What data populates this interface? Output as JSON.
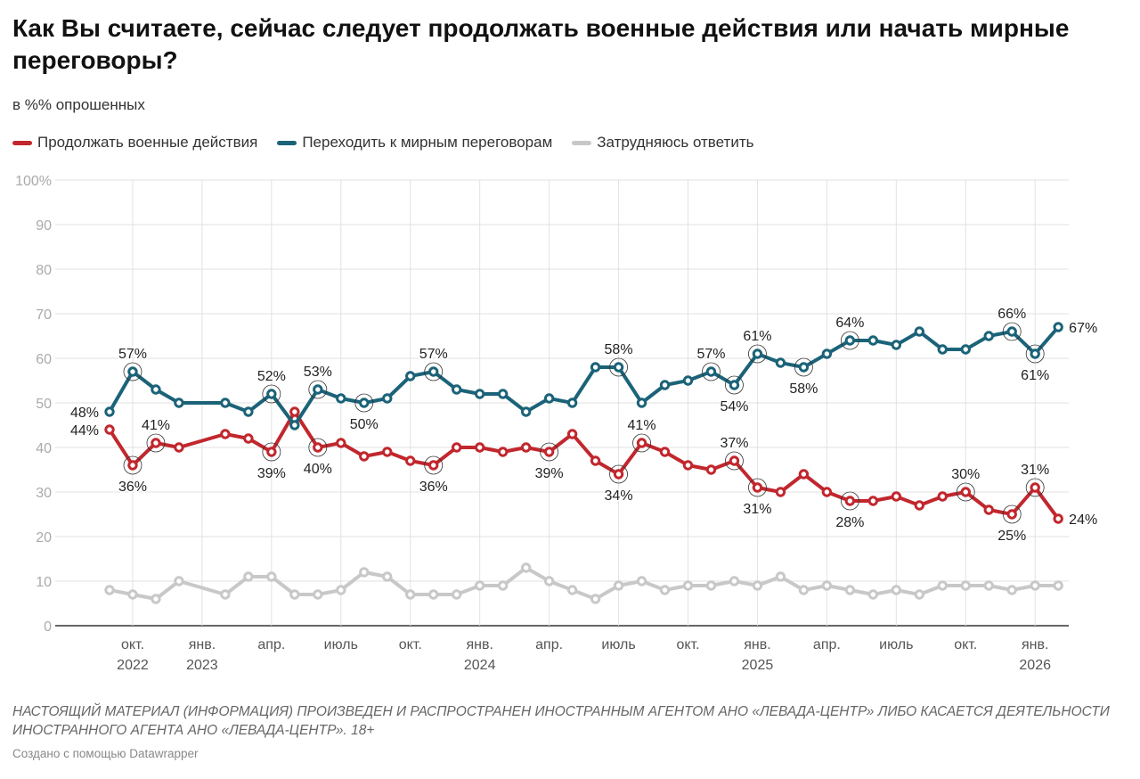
{
  "header": {
    "title": "Как Вы считаете, сейчас следует продолжать военные действия или начать мирные переговоры?",
    "subtitle": "в %% опрошенных"
  },
  "footer": {
    "note": "НАСТОЯЩИЙ МАТЕРИАЛ (ИНФОРМАЦИЯ) ПРОИЗВЕДЕН И РАСПРОСТРАНЕН ИНОСТРАННЫМ АГЕНТОМ АНО «ЛЕВАДА-ЦЕНТР» ЛИБО КАСАЕТСЯ ДЕЯТЕЛЬНОСТИ ИНОСТРАННОГО АГЕНТА АНО «ЛЕВАДА-ЦЕНТР». 18+",
    "credit": "Создано с помощью Datawrapper"
  },
  "chart_data": {
    "type": "line",
    "title": "Как Вы считаете, сейчас следует продолжать военные действия или начать мирные переговоры?",
    "subtitle": "в %% опрошенных",
    "legend_position": "top-left",
    "grid": true,
    "ylim": [
      0,
      100
    ],
    "y_ticks": [
      "0",
      "10",
      "20",
      "30",
      "40",
      "50",
      "60",
      "70",
      "80",
      "90",
      "100%"
    ],
    "y_tick_values": [
      0,
      10,
      20,
      30,
      40,
      50,
      60,
      70,
      80,
      90,
      100
    ],
    "x_ticks": [
      {
        "date": "2022-10",
        "label": "окт.",
        "year": "2022"
      },
      {
        "date": "2023-01",
        "label": "янв.",
        "year": "2023"
      },
      {
        "date": "2023-04",
        "label": "апр.",
        "year": ""
      },
      {
        "date": "2023-07",
        "label": "июль",
        "year": ""
      },
      {
        "date": "2023-10",
        "label": "окт.",
        "year": ""
      },
      {
        "date": "2024-01",
        "label": "янв.",
        "year": "2024"
      },
      {
        "date": "2024-04",
        "label": "апр.",
        "year": ""
      },
      {
        "date": "2024-07",
        "label": "июль",
        "year": ""
      },
      {
        "date": "2024-10",
        "label": "окт.",
        "year": ""
      },
      {
        "date": "2025-01",
        "label": "янв.",
        "year": "2025"
      },
      {
        "date": "2025-04",
        "label": "апр.",
        "year": ""
      },
      {
        "date": "2025-07",
        "label": "июль",
        "year": ""
      },
      {
        "date": "2025-10",
        "label": "окт.",
        "year": ""
      },
      {
        "date": "2026-01",
        "label": "янв.",
        "year": "2026"
      }
    ],
    "x": [
      "2022-09",
      "2022-10",
      "2022-11",
      "2022-12",
      "2023-02",
      "2023-03",
      "2023-04",
      "2023-05",
      "2023-06",
      "2023-07",
      "2023-08",
      "2023-09",
      "2023-10",
      "2023-11",
      "2023-12",
      "2024-01",
      "2024-02",
      "2024-03",
      "2024-04",
      "2024-05",
      "2024-06",
      "2024-07",
      "2024-08",
      "2024-09",
      "2024-10",
      "2024-11",
      "2024-12",
      "2025-01",
      "2025-02",
      "2025-03",
      "2025-04",
      "2025-05",
      "2025-06",
      "2025-07",
      "2025-08",
      "2025-09",
      "2025-10",
      "2025-11",
      "2025-12",
      "2026-01",
      "2026-02"
    ],
    "series": [
      {
        "name": "Продолжать военные действия",
        "color": "#c1272d",
        "values": [
          44,
          36,
          41,
          40,
          43,
          42,
          39,
          48,
          40,
          41,
          38,
          39,
          37,
          36,
          40,
          40,
          39,
          40,
          39,
          43,
          37,
          34,
          41,
          39,
          36,
          35,
          37,
          31,
          30,
          34,
          30,
          28,
          28,
          29,
          27,
          29,
          30,
          26,
          25,
          31,
          24
        ],
        "labels": [
          {
            "i": 0,
            "text": "44%",
            "pos": "left"
          },
          {
            "i": 1,
            "text": "36%",
            "pos": "below"
          },
          {
            "i": 2,
            "text": "41%",
            "pos": "above"
          },
          {
            "i": 6,
            "text": "39%",
            "pos": "below"
          },
          {
            "i": 8,
            "text": "40%",
            "pos": "below"
          },
          {
            "i": 13,
            "text": "36%",
            "pos": "below"
          },
          {
            "i": 18,
            "text": "39%",
            "pos": "below"
          },
          {
            "i": 21,
            "text": "34%",
            "pos": "below"
          },
          {
            "i": 22,
            "text": "41%",
            "pos": "above"
          },
          {
            "i": 26,
            "text": "37%",
            "pos": "above"
          },
          {
            "i": 27,
            "text": "31%",
            "pos": "below"
          },
          {
            "i": 31,
            "text": "28%",
            "pos": "below"
          },
          {
            "i": 36,
            "text": "30%",
            "pos": "above"
          },
          {
            "i": 38,
            "text": "25%",
            "pos": "below"
          },
          {
            "i": 39,
            "text": "31%",
            "pos": "above"
          },
          {
            "i": 40,
            "text": "24%",
            "pos": "right"
          }
        ]
      },
      {
        "name": "Переходить к мирным переговорам",
        "color": "#1b6378",
        "values": [
          48,
          57,
          53,
          50,
          50,
          48,
          52,
          45,
          53,
          51,
          50,
          51,
          56,
          57,
          53,
          52,
          52,
          48,
          51,
          50,
          58,
          58,
          50,
          54,
          55,
          57,
          54,
          61,
          59,
          58,
          61,
          64,
          64,
          63,
          66,
          62,
          62,
          65,
          66,
          61,
          67
        ],
        "labels": [
          {
            "i": 0,
            "text": "48%",
            "pos": "left"
          },
          {
            "i": 1,
            "text": "57%",
            "pos": "above"
          },
          {
            "i": 6,
            "text": "52%",
            "pos": "above"
          },
          {
            "i": 8,
            "text": "53%",
            "pos": "above"
          },
          {
            "i": 10,
            "text": "50%",
            "pos": "below"
          },
          {
            "i": 13,
            "text": "57%",
            "pos": "above"
          },
          {
            "i": 21,
            "text": "58%",
            "pos": "above"
          },
          {
            "i": 25,
            "text": "57%",
            "pos": "above"
          },
          {
            "i": 26,
            "text": "54%",
            "pos": "below"
          },
          {
            "i": 27,
            "text": "61%",
            "pos": "above"
          },
          {
            "i": 29,
            "text": "58%",
            "pos": "below"
          },
          {
            "i": 31,
            "text": "64%",
            "pos": "above"
          },
          {
            "i": 38,
            "text": "66%",
            "pos": "above"
          },
          {
            "i": 39,
            "text": "61%",
            "pos": "below"
          },
          {
            "i": 40,
            "text": "67%",
            "pos": "right"
          }
        ]
      },
      {
        "name": "Затрудняюсь ответить",
        "color": "#c8c8c8",
        "values": [
          8,
          7,
          6,
          10,
          7,
          11,
          11,
          7,
          7,
          8,
          12,
          11,
          7,
          7,
          7,
          9,
          9,
          13,
          10,
          8,
          6,
          9,
          10,
          8,
          9,
          9,
          10,
          9,
          11,
          8,
          9,
          8,
          7,
          8,
          7,
          9,
          9,
          9,
          8,
          9,
          9
        ],
        "labels": []
      }
    ]
  }
}
